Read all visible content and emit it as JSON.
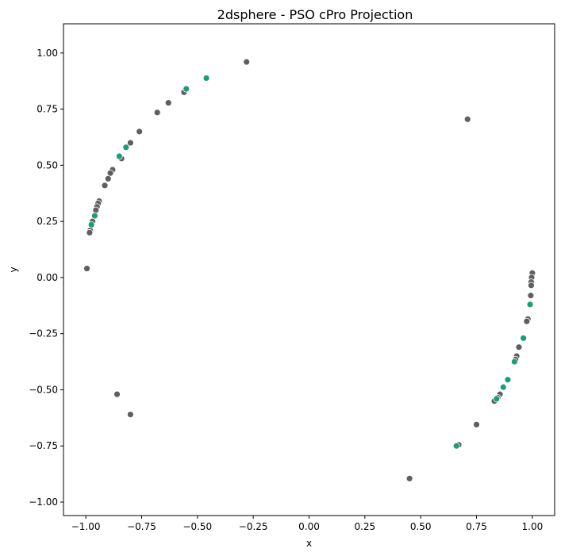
{
  "chart_data": {
    "type": "scatter",
    "title": "2dsphere - PSO cPro Projection",
    "xlabel": "x",
    "ylabel": "y",
    "xlim": [
      -1.1,
      1.1
    ],
    "ylim": [
      -1.06,
      1.13
    ],
    "xticks": [
      "−1.00",
      "−0.75",
      "−0.50",
      "−0.25",
      "0.00",
      "0.25",
      "0.50",
      "0.75",
      "1.00"
    ],
    "xtick_values": [
      -1.0,
      -0.75,
      -0.5,
      -0.25,
      0.0,
      0.25,
      0.5,
      0.75,
      1.0
    ],
    "yticks": [
      "−1.00",
      "−0.75",
      "−0.50",
      "−0.25",
      "0.00",
      "0.25",
      "0.50",
      "0.75",
      "1.00"
    ],
    "ytick_values": [
      -1.0,
      -0.75,
      -0.5,
      -0.25,
      0.0,
      0.25,
      0.5,
      0.75,
      1.0
    ],
    "grid": false,
    "colors": {
      "gray": "#5f5f5f",
      "green": "#1b9e77",
      "edge": "#ffffff"
    },
    "series": [
      {
        "color": "#5f5f5f",
        "points": [
          [
            -0.28,
            0.96
          ],
          [
            -0.56,
            0.825
          ],
          [
            -0.63,
            0.778
          ],
          [
            -0.68,
            0.735
          ],
          [
            -0.76,
            0.65
          ],
          [
            -0.8,
            0.6
          ],
          [
            -0.84,
            0.53
          ],
          [
            -0.88,
            0.48
          ],
          [
            -0.89,
            0.465
          ],
          [
            -0.9,
            0.44
          ],
          [
            -0.915,
            0.41
          ],
          [
            -0.94,
            0.34
          ],
          [
            -0.945,
            0.33
          ],
          [
            -0.95,
            0.315
          ],
          [
            -0.955,
            0.3
          ],
          [
            -0.97,
            0.25
          ],
          [
            -0.98,
            0.21
          ],
          [
            -0.983,
            0.2
          ],
          [
            -0.995,
            0.04
          ],
          [
            -0.86,
            -0.52
          ],
          [
            -0.8,
            -0.61
          ],
          [
            0.71,
            0.705
          ],
          [
            1.0,
            0.02
          ],
          [
            0.997,
            0.0
          ],
          [
            0.995,
            -0.02
          ],
          [
            0.995,
            -0.035
          ],
          [
            0.993,
            -0.08
          ],
          [
            0.98,
            -0.185
          ],
          [
            0.975,
            -0.195
          ],
          [
            0.94,
            -0.31
          ],
          [
            0.93,
            -0.35
          ],
          [
            0.925,
            -0.365
          ],
          [
            0.855,
            -0.52
          ],
          [
            0.845,
            -0.535
          ],
          [
            0.835,
            -0.545
          ],
          [
            0.83,
            -0.55
          ],
          [
            0.75,
            -0.655
          ],
          [
            0.67,
            -0.745
          ],
          [
            0.45,
            -0.895
          ]
        ]
      },
      {
        "color": "#1b9e77",
        "points": [
          [
            -0.46,
            0.888
          ],
          [
            -0.55,
            0.84
          ],
          [
            -0.82,
            0.58
          ],
          [
            -0.85,
            0.54
          ],
          [
            -0.96,
            0.275
          ],
          [
            -0.975,
            0.235
          ],
          [
            0.99,
            -0.12
          ],
          [
            0.96,
            -0.27
          ],
          [
            0.92,
            -0.375
          ],
          [
            0.89,
            -0.455
          ],
          [
            0.87,
            -0.488
          ],
          [
            0.84,
            -0.54
          ],
          [
            0.66,
            -0.75
          ]
        ]
      }
    ]
  }
}
